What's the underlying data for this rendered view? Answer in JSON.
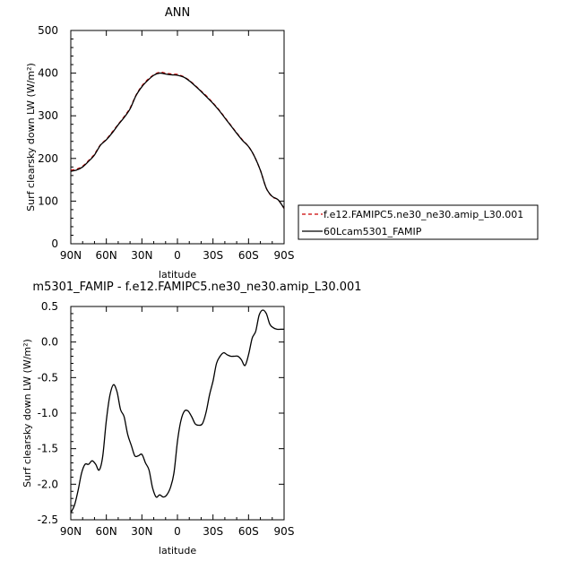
{
  "chart_data": [
    {
      "type": "line",
      "title": "ANN",
      "xlabel": "latitude",
      "ylabel": "Surf clearsky down LW (W/m²)",
      "x_ticks": [
        "90N",
        "60N",
        "30N",
        "0",
        "30S",
        "60S",
        "90S"
      ],
      "y_ticks": [
        "0",
        "100",
        "200",
        "300",
        "400",
        "500"
      ],
      "xlim": [
        90,
        -90
      ],
      "ylim": [
        0,
        500
      ],
      "legend_position": "right",
      "legend": [
        {
          "label": "f.e12.FAMIPC5.ne30_ne30.amip_L30.001",
          "color": "#cc0000",
          "dash": "dashed"
        },
        {
          "label": "60Lcam5301_FAMIP",
          "color": "#000000",
          "dash": "solid"
        }
      ],
      "series": [
        {
          "name": "f.e12.FAMIPC5.ne30_ne30.amip_L30.001",
          "color": "#cc0000",
          "x": [
            90,
            85,
            80,
            75,
            70,
            65,
            60,
            55,
            50,
            45,
            40,
            35,
            30,
            25,
            20,
            15,
            10,
            5,
            0,
            -5,
            -10,
            -15,
            -20,
            -25,
            -30,
            -35,
            -40,
            -45,
            -50,
            -55,
            -60,
            -65,
            -70,
            -75,
            -80,
            -85,
            -90
          ],
          "values": [
            172,
            175,
            182,
            195,
            210,
            232,
            245,
            262,
            280,
            298,
            318,
            348,
            370,
            385,
            396,
            402,
            400,
            398,
            397,
            392,
            383,
            371,
            358,
            345,
            330,
            314,
            296,
            278,
            260,
            243,
            228,
            205,
            172,
            130,
            110,
            103,
            83
          ]
        },
        {
          "name": "60Lcam5301_FAMIP",
          "color": "#000000",
          "x": [
            90,
            85,
            80,
            75,
            70,
            65,
            60,
            55,
            50,
            45,
            40,
            35,
            30,
            25,
            20,
            15,
            10,
            5,
            0,
            -5,
            -10,
            -15,
            -20,
            -25,
            -30,
            -35,
            -40,
            -45,
            -50,
            -55,
            -60,
            -65,
            -70,
            -75,
            -80,
            -85,
            -90
          ],
          "values": [
            170,
            173,
            180,
            193,
            208,
            231,
            244,
            260,
            279,
            296,
            316,
            347,
            368,
            383,
            395,
            400,
            398,
            396,
            395,
            391,
            382,
            370,
            357,
            343,
            329,
            313,
            295,
            277,
            259,
            242,
            228,
            205,
            172,
            130,
            111,
            103,
            83
          ]
        }
      ]
    },
    {
      "type": "line",
      "title": "m5301_FAMIP - f.e12.FAMIPC5.ne30_ne30.amip_L30.001",
      "xlabel": "latitude",
      "ylabel": "Surf clearsky down LW (W/m²)",
      "x_ticks": [
        "90N",
        "60N",
        "30N",
        "0",
        "30S",
        "60S",
        "90S"
      ],
      "y_ticks": [
        "-2.5",
        "-2.0",
        "-1.5",
        "-1.0",
        "-0.5",
        "0.0",
        "0.5"
      ],
      "xlim": [
        90,
        -90
      ],
      "ylim": [
        -2.5,
        0.5
      ],
      "series": [
        {
          "color": "#000000",
          "x": [
            90,
            87,
            84,
            81,
            78,
            75,
            72,
            69,
            66,
            63,
            60,
            57,
            54,
            51,
            48,
            45,
            42,
            39,
            36,
            33,
            30,
            27,
            24,
            21,
            18,
            15,
            12,
            9,
            6,
            3,
            0,
            -3,
            -6,
            -9,
            -12,
            -15,
            -18,
            -21,
            -24,
            -27,
            -30,
            -33,
            -36,
            -39,
            -42,
            -45,
            -48,
            -51,
            -54,
            -57,
            -60,
            -63,
            -66,
            -69,
            -72,
            -75,
            -78,
            -81,
            -84,
            -87,
            -90
          ],
          "values": [
            -2.4,
            -2.3,
            -2.1,
            -1.85,
            -1.72,
            -1.72,
            -1.67,
            -1.72,
            -1.8,
            -1.6,
            -1.1,
            -0.75,
            -0.6,
            -0.7,
            -0.95,
            -1.05,
            -1.3,
            -1.45,
            -1.6,
            -1.6,
            -1.58,
            -1.7,
            -1.8,
            -2.05,
            -2.18,
            -2.15,
            -2.18,
            -2.15,
            -2.05,
            -1.85,
            -1.4,
            -1.1,
            -0.97,
            -0.97,
            -1.05,
            -1.15,
            -1.17,
            -1.15,
            -1.0,
            -0.75,
            -0.55,
            -0.3,
            -0.2,
            -0.15,
            -0.18,
            -0.2,
            -0.2,
            -0.2,
            -0.25,
            -0.33,
            -0.18,
            0.05,
            0.15,
            0.38,
            0.45,
            0.4,
            0.25,
            0.2,
            0.18,
            0.18,
            0.18
          ]
        }
      ]
    }
  ]
}
